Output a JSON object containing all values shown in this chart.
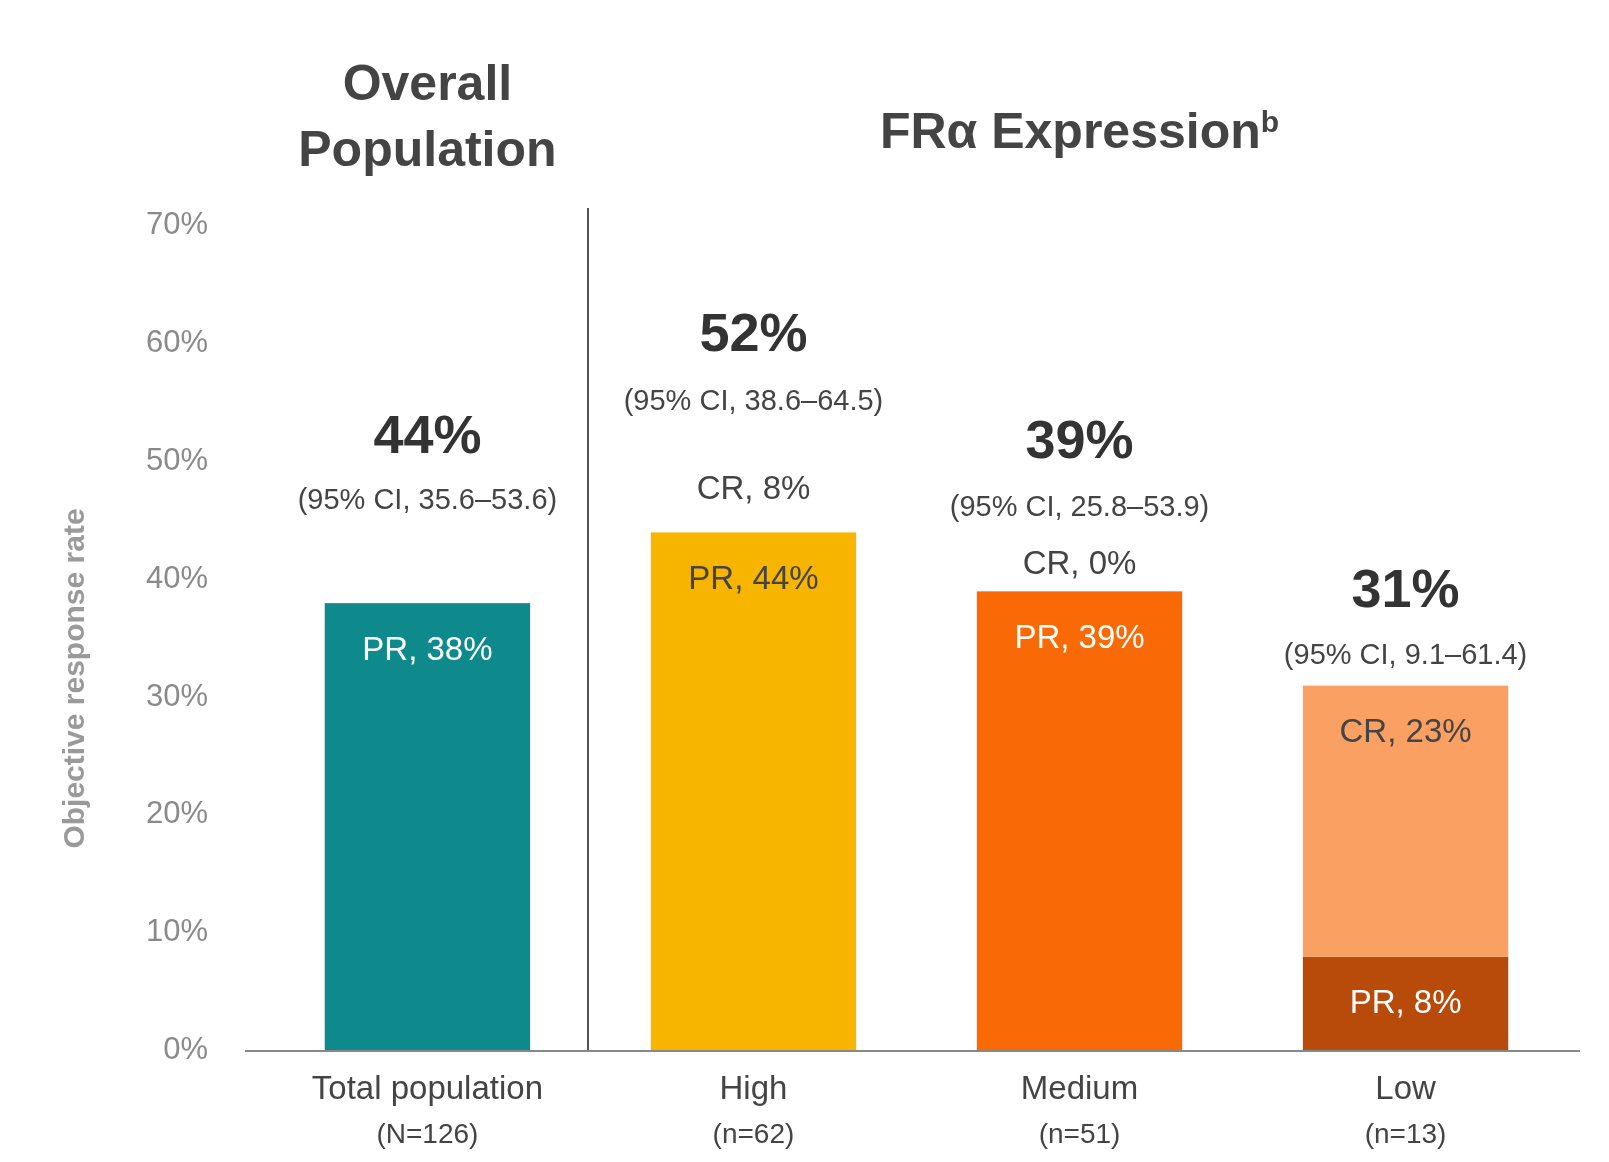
{
  "chart_data": {
    "type": "bar",
    "stacked": true,
    "ylabel": "Objective response rate",
    "categories": [
      "Total population\n(N=126)",
      "High\n(n=62)",
      "Medium\n(n=51)",
      "Low\n(n=13)"
    ],
    "series": [
      {
        "colors": [
          "#0e8a8c",
          "#f7b500",
          "#f96a06",
          "#b84a0a"
        ],
        "values": [
          38,
          44,
          39,
          8
        ],
        "value_labels": [
          "PR, 38%",
          "PR, 44%",
          "PR, 39%",
          "PR, 8%"
        ]
      },
      {
        "color": "#fba063",
        "values": [
          null,
          null,
          0,
          23
        ],
        "value_labels": [
          null,
          null,
          "CR, 0%",
          "CR, 23%"
        ]
      }
    ],
    "ylim": [
      0,
      70
    ],
    "yticks": [
      {
        "value": 0,
        "label": "0%"
      },
      {
        "value": 10,
        "label": "10%"
      },
      {
        "value": 20,
        "label": "20%"
      },
      {
        "value": 30,
        "label": "30%"
      },
      {
        "value": 40,
        "label": "40%"
      },
      {
        "value": 50,
        "label": "50%"
      },
      {
        "value": 60,
        "label": "60%"
      },
      {
        "value": 70,
        "label": "70%"
      }
    ],
    "grid": false,
    "annotations": [
      "Overall\nPopulation",
      "FRα Expression$^{b}$",
      "44%",
      "(95% CI, 35.6–53.6)",
      "52%",
      "(95% CI, 38.6–64.5)",
      "CR, 8%",
      "39%",
      "(95% CI, 25.8–53.9)",
      "31%",
      "(95% CI, 9.1–61.4)"
    ]
  }
}
